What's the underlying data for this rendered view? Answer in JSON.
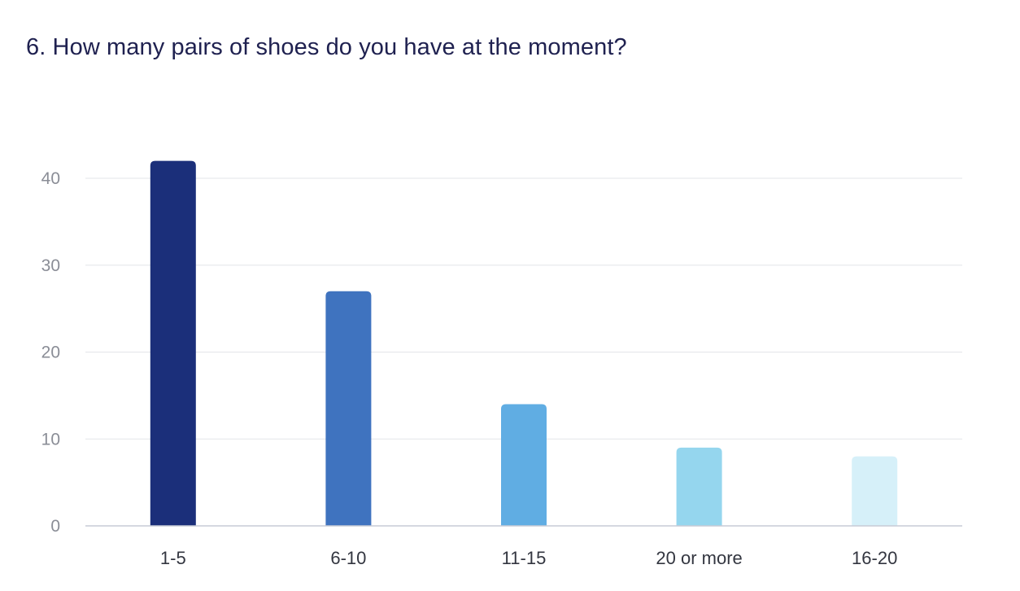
{
  "question": {
    "title": "6. How many pairs of shoes do you have at the moment?"
  },
  "colors": {
    "title": "#1f2150",
    "grid": "#e3e5e9",
    "baseline": "#c7cbd6",
    "tick_text": "#8a8d96",
    "category_text": "#333640"
  },
  "chart_data": {
    "type": "bar",
    "title": "6. How many pairs of shoes do you have at the moment?",
    "categories": [
      "1-5",
      "6-10",
      "11-15",
      "20 or more",
      "16-20"
    ],
    "values": [
      42,
      27,
      14,
      9,
      8
    ],
    "bar_colors": [
      "#1b2f7a",
      "#3f73bf",
      "#60ade3",
      "#95d6ee",
      "#d6f0f9"
    ],
    "ylim": [
      0,
      40
    ],
    "yticks": [
      0,
      10,
      20,
      30,
      40
    ],
    "xlabel": "",
    "ylabel": "",
    "grid": true,
    "legend": "none"
  }
}
